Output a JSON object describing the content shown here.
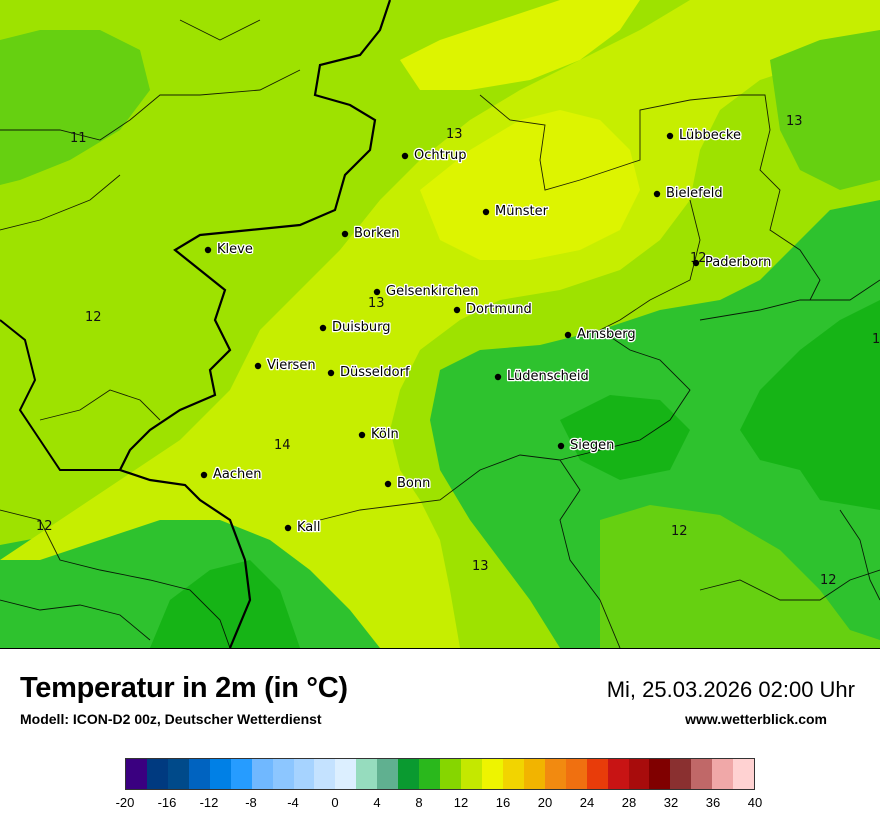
{
  "title": "Temperatur in 2m (in °C)",
  "model_line": "Modell: ICON-D2 00z, Deutscher Wetterdienst",
  "datetime": "Mi, 25.03.2026 02:00 Uhr",
  "website": "www.wetterblick.com",
  "colors": {
    "t11": "#16b416",
    "t12": "#2ec22e",
    "t12b": "#66d011",
    "t13": "#9ee200",
    "t14": "#c6ee00",
    "t15": "#ddf400",
    "border": "#000000"
  },
  "cities": [
    {
      "name": "Lübbecke"
    },
    {
      "name": "Ochtrup"
    },
    {
      "name": "Bielefeld"
    },
    {
      "name": "Münster"
    },
    {
      "name": "Borken"
    },
    {
      "name": "Kleve"
    },
    {
      "name": "Paderborn"
    },
    {
      "name": "Gelsenkirchen"
    },
    {
      "name": "Dortmund"
    },
    {
      "name": "Duisburg"
    },
    {
      "name": "Arnsberg"
    },
    {
      "name": "Viersen"
    },
    {
      "name": "Düsseldorf"
    },
    {
      "name": "Lüdenscheid"
    },
    {
      "name": "Köln"
    },
    {
      "name": "Siegen"
    },
    {
      "name": "Aachen"
    },
    {
      "name": "Bonn"
    },
    {
      "name": "Kall"
    }
  ],
  "isotherm_labels": [
    "11",
    "13",
    "13",
    "12",
    "12",
    "13",
    "14",
    "12",
    "12",
    "13",
    "12",
    "1"
  ],
  "legend": {
    "colors": [
      "#3a0080",
      "#003a80",
      "#004a8a",
      "#0063c0",
      "#0080e6",
      "#269cff",
      "#70b8ff",
      "#8cc6ff",
      "#a6d3ff",
      "#c4e2ff",
      "#dcefff",
      "#96dcbe",
      "#60b090",
      "#0a9a30",
      "#2ab81c",
      "#86d600",
      "#c4e800",
      "#eef400",
      "#f2d400",
      "#f2b400",
      "#f28a10",
      "#f07010",
      "#e83c0a",
      "#c81414",
      "#a80c0c",
      "#800000",
      "#8a3030",
      "#c06868",
      "#f0a8a8",
      "#ffd2d2"
    ],
    "ticks": [
      "-20",
      "-16",
      "-12",
      "-8",
      "-4",
      "0",
      "4",
      "8",
      "12",
      "16",
      "20",
      "24",
      "28",
      "32",
      "36",
      "40"
    ]
  }
}
